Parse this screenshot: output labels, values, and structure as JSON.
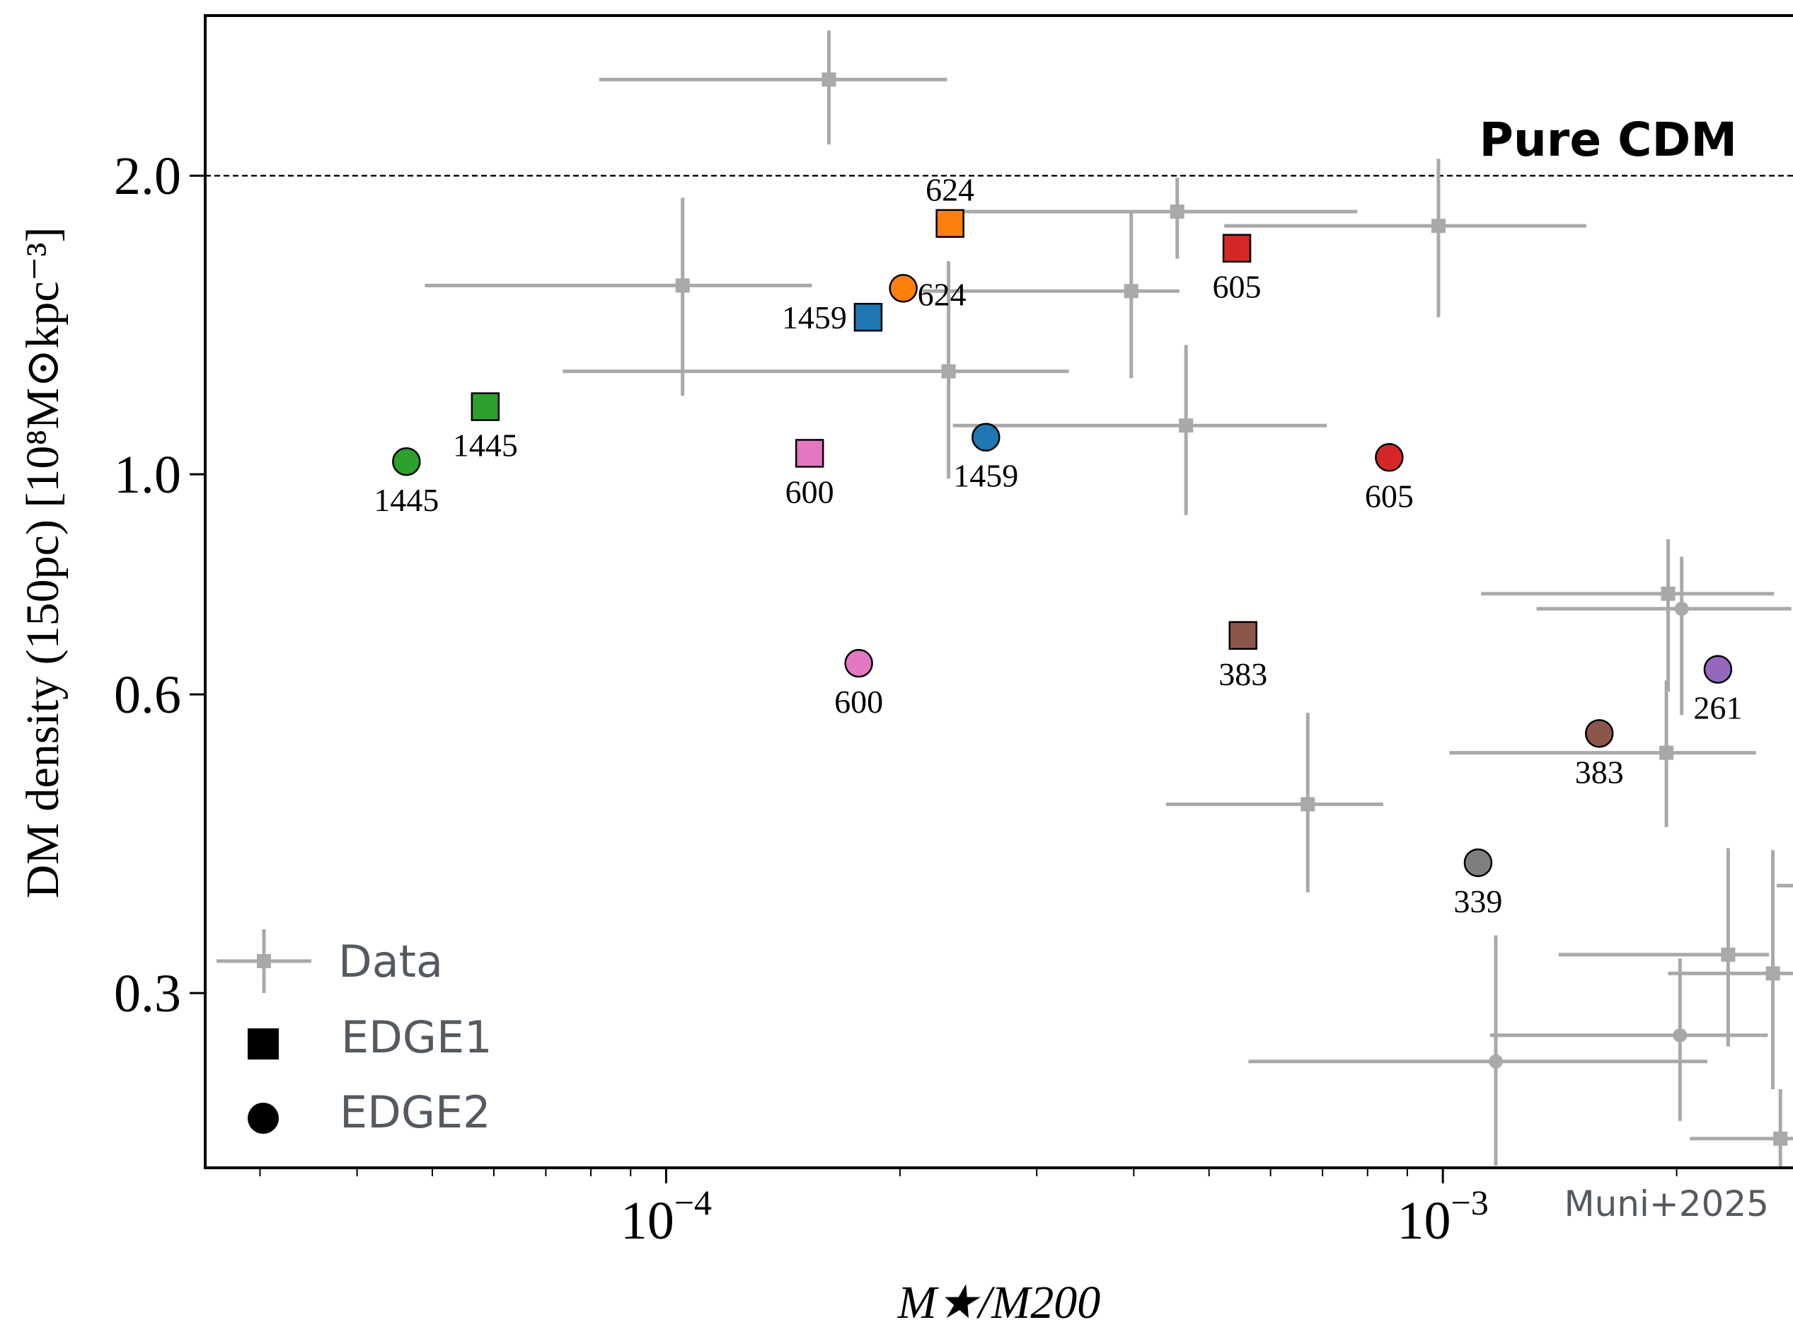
{
  "chart_data": {
    "type": "scatter",
    "xscale": "log",
    "yscale": "log",
    "xlim": [
      2.55e-05,
      0.00292
    ],
    "ylim": [
      0.2,
      2.9
    ],
    "xlabel": "M★/M200",
    "ylabel": "DM density (150pc) [10⁸M⊙kpc⁻³]",
    "x_ticks": [
      {
        "value": 0.0001,
        "base": "10",
        "exp": "−4"
      },
      {
        "value": 0.001,
        "base": "10",
        "exp": "−3"
      }
    ],
    "y_ticks": [
      {
        "value": 0.3,
        "label": "0.3"
      },
      {
        "value": 0.6,
        "label": "0.6"
      },
      {
        "value": 1.0,
        "label": "1.0"
      },
      {
        "value": 2.0,
        "label": "2.0"
      }
    ],
    "reference_line": {
      "y": 2.0,
      "label": "Pure CDM"
    },
    "credit": "Muni+2025",
    "colors": {
      "data": "#a9a9a9",
      "blue": "#1f77b4",
      "orange": "#ff7f0e",
      "green": "#2ca02c",
      "red": "#d62728",
      "purple": "#9467bd",
      "brown": "#8c564b",
      "pink": "#e377c2",
      "gray": "#7f7f7f"
    },
    "legend": {
      "position": "lower-left",
      "entries": [
        {
          "label": "Data",
          "marker": "errorbar-square"
        },
        {
          "label": "EDGE1",
          "marker": "square"
        },
        {
          "label": "EDGE2",
          "marker": "circle"
        }
      ]
    },
    "series": [
      {
        "name": "Data",
        "marker": "errorbar",
        "points": [
          {
            "x": 0.000162,
            "y": 2.5,
            "xerr": [
              8.2e-05,
              0.00023
            ],
            "yerr": [
              2.15,
              2.8
            ],
            "m": "s"
          },
          {
            "x": 0.000105,
            "y": 1.55,
            "xerr": [
              4.89e-05,
              0.000154
            ],
            "yerr": [
              1.2,
              1.9
            ],
            "m": "s"
          },
          {
            "x": 0.000231,
            "y": 1.27,
            "xerr": [
              7.36e-05,
              0.00033
            ],
            "yerr": [
              0.99,
              1.64
            ],
            "m": "s"
          },
          {
            "x": 0.000397,
            "y": 1.53,
            "xerr": [
              0.000214,
              0.000458
            ],
            "yerr": [
              1.25,
              1.84
            ],
            "m": "s"
          },
          {
            "x": 0.000455,
            "y": 1.84,
            "xerr": [
              0.000234,
              0.000776
            ],
            "yerr": [
              1.65,
              1.99
            ],
            "m": "s"
          },
          {
            "x": 0.000467,
            "y": 1.12,
            "xerr": [
              0.000234,
              0.000709
            ],
            "yerr": [
              0.91,
              1.35
            ],
            "m": "s"
          },
          {
            "x": 0.000987,
            "y": 1.78,
            "xerr": [
              0.000523,
              0.00153
            ],
            "yerr": [
              1.44,
              2.08
            ],
            "m": "s"
          },
          {
            "x": 0.00067,
            "y": 0.465,
            "xerr": [
              0.00044,
              0.000838
            ],
            "yerr": [
              0.379,
              0.575
            ],
            "m": "s"
          },
          {
            "x": 0.00195,
            "y": 0.758,
            "xerr": [
              0.00112,
              0.00267
            ],
            "yerr": [
              0.604,
              0.86
            ],
            "m": "s"
          },
          {
            "x": 0.00203,
            "y": 0.732,
            "xerr": [
              0.00132,
              0.00281
            ],
            "yerr": [
              0.572,
              0.826
            ],
            "m": "c"
          },
          {
            "x": 0.00194,
            "y": 0.524,
            "xerr": [
              0.00102,
              0.00253
            ],
            "yerr": [
              0.441,
              0.62
            ],
            "m": "s"
          },
          {
            "x": 0.00233,
            "y": 0.328,
            "xerr": [
              0.00141,
              0.00263
            ],
            "yerr": [
              0.265,
              0.42
            ],
            "m": "s"
          },
          {
            "x": 0.00266,
            "y": 0.314,
            "xerr": [
              0.00195,
              0.0033
            ],
            "yerr": [
              0.24,
              0.418
            ],
            "m": "s"
          },
          {
            "x": 0.00356,
            "y": 0.385,
            "xerr": [
              0.00269,
              0.00419
            ],
            "yerr": [
              0.296,
              0.481
            ],
            "m": "s"
          },
          {
            "x": 0.00202,
            "y": 0.272,
            "xerr": [
              0.00115,
              0.00262
            ],
            "yerr": [
              0.223,
              0.325
            ],
            "m": "c"
          },
          {
            "x": 0.00117,
            "y": 0.256,
            "xerr": [
              0.000562,
              0.00219
            ],
            "yerr": [
              0.201,
              0.343
            ],
            "m": "c"
          },
          {
            "x": 0.00272,
            "y": 0.214,
            "xerr": [
              0.00208,
              0.0033
            ],
            "yerr": [
              0.193,
              0.24
            ],
            "m": "s"
          }
        ]
      },
      {
        "name": "EDGE1",
        "marker": "square",
        "points": [
          {
            "id": "624",
            "x": 0.000232,
            "y": 1.79,
            "color": "orange",
            "label": "624",
            "lp": "above"
          },
          {
            "id": "605",
            "x": 0.000543,
            "y": 1.69,
            "color": "red",
            "label": "605",
            "lp": "below"
          },
          {
            "id": "1459",
            "x": 0.000182,
            "y": 1.44,
            "color": "blue",
            "label": "1459",
            "lp": "left"
          },
          {
            "id": "1445",
            "x": 5.85e-05,
            "y": 1.17,
            "color": "green",
            "label": "1445",
            "lp": "below"
          },
          {
            "id": "600",
            "x": 0.000153,
            "y": 1.05,
            "color": "pink",
            "label": "600",
            "lp": "below"
          },
          {
            "id": "383",
            "x": 0.000553,
            "y": 0.688,
            "color": "brown",
            "label": "383",
            "lp": "below"
          }
        ]
      },
      {
        "name": "EDGE2",
        "marker": "circle",
        "points": [
          {
            "id": "624",
            "x": 0.000202,
            "y": 1.54,
            "color": "orange",
            "label": "624",
            "lp": "right-below"
          },
          {
            "id": "1459",
            "x": 0.000258,
            "y": 1.09,
            "color": "blue",
            "label": "1459",
            "lp": "below"
          },
          {
            "id": "1445",
            "x": 4.63e-05,
            "y": 1.03,
            "color": "green",
            "label": "1445",
            "lp": "below"
          },
          {
            "id": "605",
            "x": 0.000853,
            "y": 1.04,
            "color": "red",
            "label": "605",
            "lp": "below"
          },
          {
            "id": "600",
            "x": 0.000177,
            "y": 0.645,
            "color": "pink",
            "label": "600",
            "lp": "below"
          },
          {
            "id": "261",
            "x": 0.00226,
            "y": 0.636,
            "color": "purple",
            "label": "261",
            "lp": "below"
          },
          {
            "id": "383",
            "x": 0.00159,
            "y": 0.548,
            "color": "brown",
            "label": "383",
            "lp": "below"
          },
          {
            "id": "339",
            "x": 0.00111,
            "y": 0.406,
            "color": "gray",
            "label": "339",
            "lp": "below"
          }
        ]
      }
    ]
  }
}
